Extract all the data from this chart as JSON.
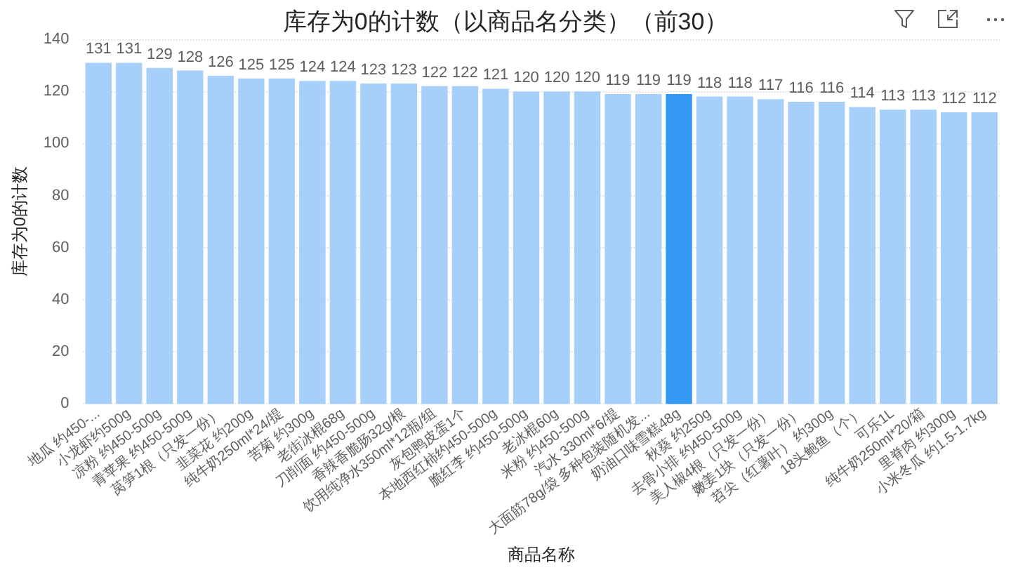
{
  "chart_data": {
    "type": "bar",
    "title": "库存为0的计数（以商品名分类）（前30）",
    "xlabel": "商品名称",
    "ylabel": "库存为0的计数",
    "categories": [
      "地瓜 约450-...",
      "小龙虾约500g",
      "凉粉 约450-500g",
      "青苹果 约450-500g",
      "莴笋1根（只发一份）",
      "韭菜花 约200g",
      "纯牛奶250ml*24/提",
      "苦菊 约300g",
      "老街冰棍68g",
      "刀削面 约450-500g",
      "香辣香脆肠32g/根",
      "饮用纯净水350ml*12瓶/组",
      "灰包鸭皮蛋1个",
      "本地西红柿约450-500g",
      "脆红李 约450-500g",
      "老冰棍60g",
      "米粉 约450-500g",
      "汽水 330ml*6/提",
      "大面筋78g/袋 多种包装随机发...",
      "奶油口味雪糕48g",
      "秋葵 约250g",
      "去骨小排 约450-500g",
      "美人椒4根（只发一份）",
      "嫩姜1块（只发一份）",
      "苕尖（红薯叶） 约300g",
      "18头鲍鱼（个）",
      "可乐1L",
      "纯牛奶250ml*20/箱",
      "里脊肉 约300g",
      "小米冬瓜 约1.5-1.7kg"
    ],
    "values": [
      131,
      131,
      129,
      128,
      126,
      125,
      125,
      124,
      124,
      123,
      123,
      122,
      122,
      121,
      120,
      120,
      120,
      119,
      119,
      119,
      118,
      118,
      117,
      116,
      116,
      114,
      113,
      113,
      112,
      112
    ],
    "colors": [
      "#a6d0fa",
      "#a6d0fa",
      "#a6d0fa",
      "#a6d0fa",
      "#a6d0fa",
      "#a6d0fa",
      "#a6d0fa",
      "#a6d0fa",
      "#a6d0fa",
      "#a6d0fa",
      "#a6d0fa",
      "#a6d0fa",
      "#a6d0fa",
      "#a6d0fa",
      "#a6d0fa",
      "#a6d0fa",
      "#a6d0fa",
      "#a6d0fa",
      "#a6d0fa",
      "#3399f3",
      "#a6d0fa",
      "#a6d0fa",
      "#a6d0fa",
      "#a6d0fa",
      "#a6d0fa",
      "#a6d0fa",
      "#a6d0fa",
      "#a6d0fa",
      "#a6d0fa",
      "#a6d0fa"
    ],
    "ylim": [
      0,
      140
    ],
    "yticks": [
      0,
      20,
      40,
      60,
      80,
      100,
      120,
      140
    ],
    "grid": "y",
    "data_labels": true
  }
}
